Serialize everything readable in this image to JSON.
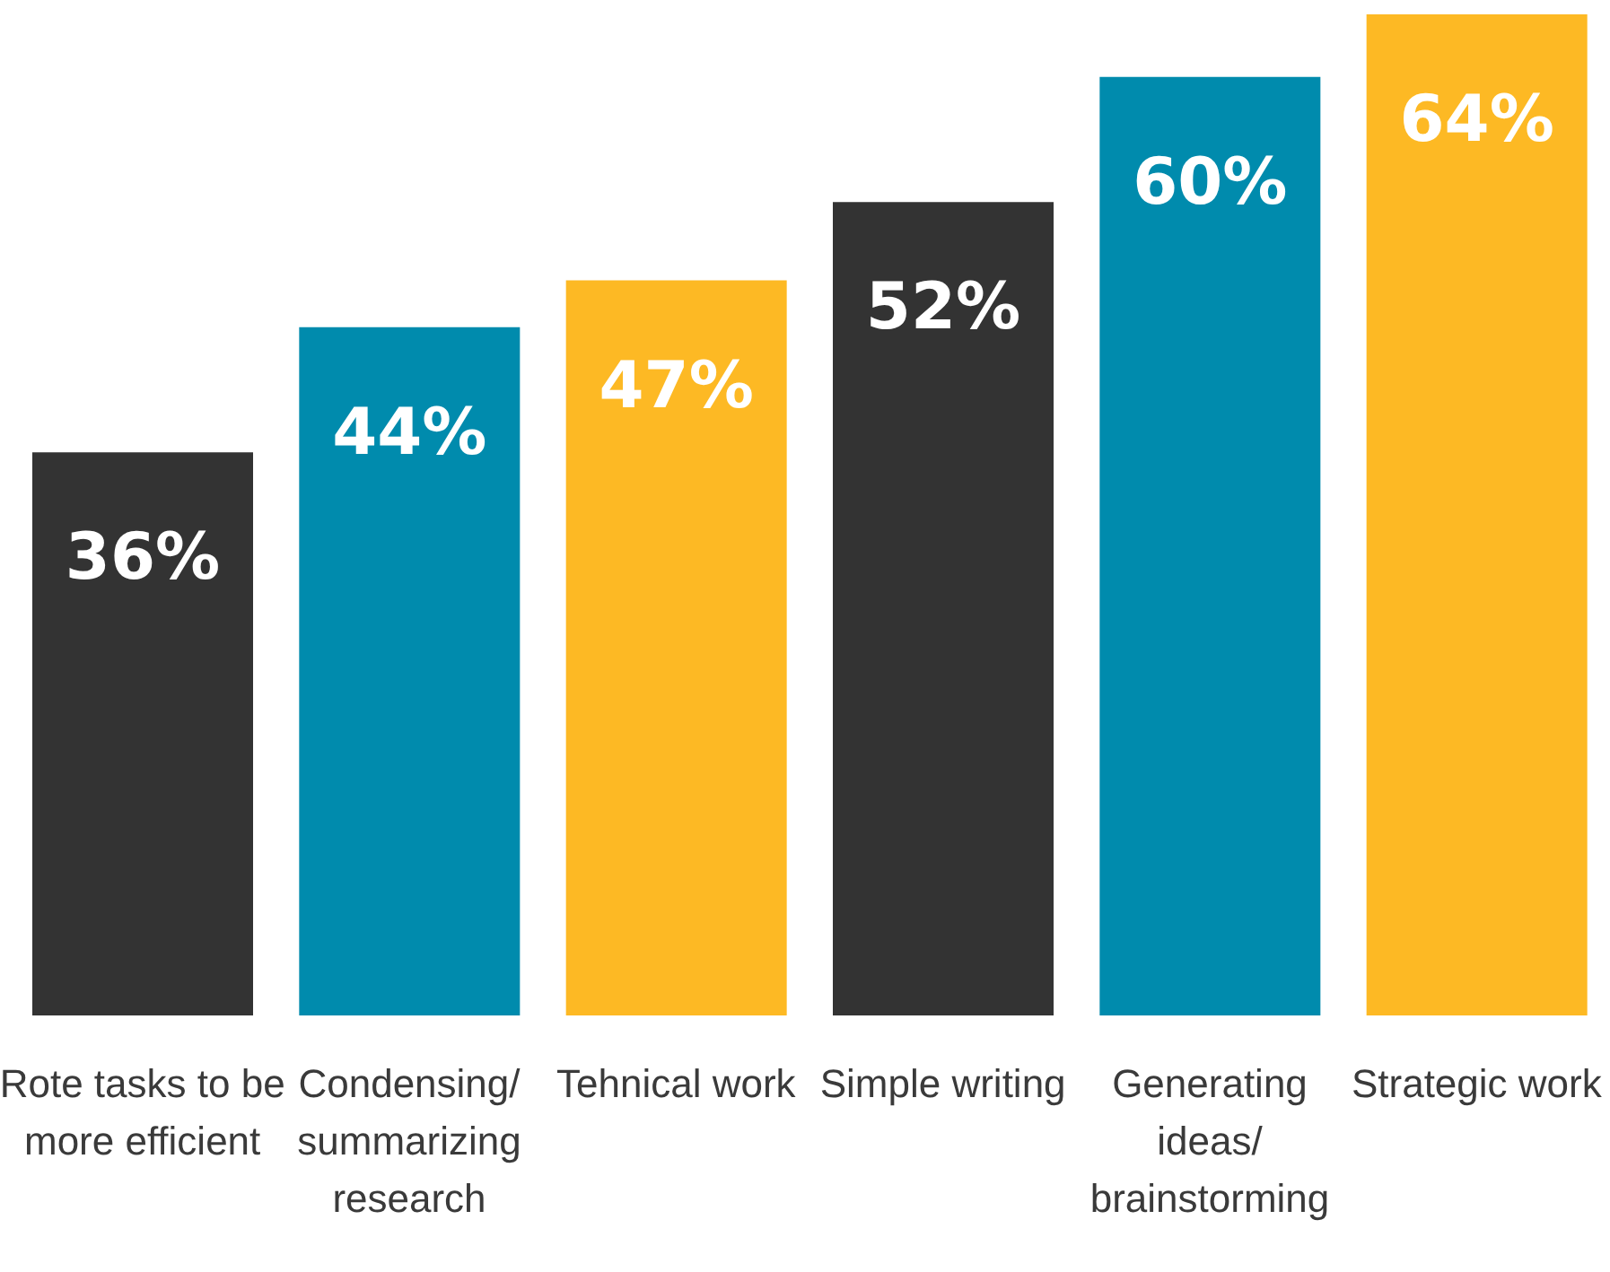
{
  "chart_data": {
    "type": "bar",
    "categories": [
      "Rote tasks to be more efficient",
      "Condensing/ summarizing research",
      "Tehnical work",
      "Simple writing",
      "Generating ideas/ brainstorming",
      "Strategic work"
    ],
    "values": [
      36,
      44,
      47,
      52,
      60,
      64
    ],
    "colors": [
      "#333333",
      "#008bad",
      "#fdb924",
      "#333333",
      "#008bad",
      "#fdb924"
    ],
    "value_labels": [
      "36%",
      "44%",
      "47%",
      "52%",
      "60%",
      "64%"
    ]
  }
}
